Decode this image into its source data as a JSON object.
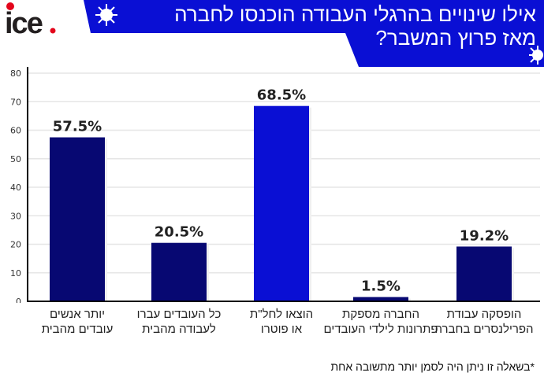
{
  "logo": {
    "text": "ice",
    "dot_color": "#e3051b",
    "text_color": "#231f20"
  },
  "header": {
    "title_line1": "אילו שינויים בהרגלי העבודה הוכנסו לחברה",
    "title_line2": "מאז פרוץ המשבר?",
    "background": "#0a0fd4",
    "icon": "virus-icon"
  },
  "chart_data": {
    "type": "bar",
    "title": "אילו שינויים בהרגלי העבודה הוכנסו לחברה מאז פרוץ המשבר?",
    "xlabel": "",
    "ylabel": "",
    "ylim": [
      0,
      80
    ],
    "yticks": [
      0,
      10,
      20,
      30,
      40,
      50,
      60,
      70,
      80
    ],
    "grid": true,
    "categories": [
      [
        "יותר אנשים",
        "עובדים מהבית"
      ],
      [
        "כל העובדים עברו",
        "לעבודה מהבית"
      ],
      [
        "הוצאו לחל\"ת",
        "או פוטרו"
      ],
      [
        "החברה מספקת",
        "פתרונות לילדי העובדים"
      ],
      [
        "הופסקה עבודת",
        "הפרילנסרים בחברה"
      ]
    ],
    "values": [
      57.5,
      20.5,
      68.5,
      1.5,
      19.2
    ],
    "labels": [
      "57.5%",
      "20.5%",
      "68.5%",
      "1.5%",
      "19.2%"
    ],
    "colors": [
      "#070872",
      "#070872",
      "#0a0fd4",
      "#070872",
      "#070872"
    ]
  },
  "footnote": "*בשאלה זו ניתן היה לסמן יותר מתשובה אחת"
}
